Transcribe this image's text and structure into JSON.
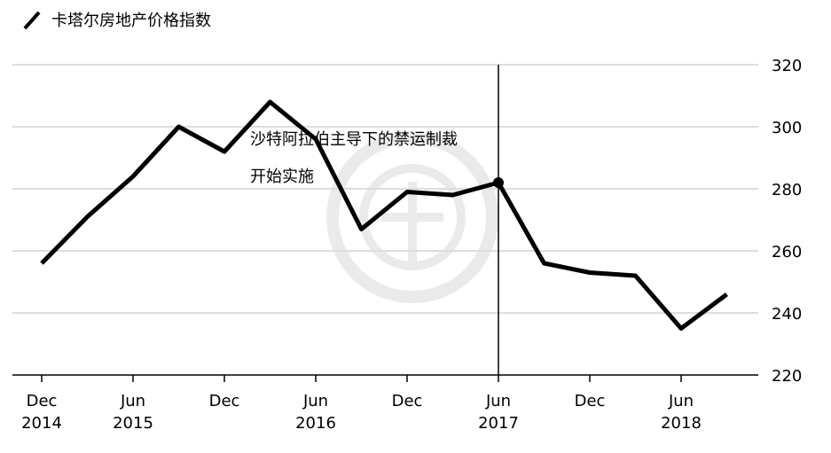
{
  "chart_data": {
    "type": "line",
    "legend_label": "卡塔尔房地产价格指数",
    "categories": [
      [
        "Dec",
        "2014"
      ],
      null,
      [
        "Jun",
        "2015"
      ],
      null,
      [
        "Dec"
      ],
      null,
      [
        "Jun",
        "2016"
      ],
      null,
      [
        "Dec"
      ],
      null,
      [
        "Jun",
        "2017"
      ],
      null,
      [
        "Dec"
      ],
      null,
      [
        "Jun",
        "2018"
      ],
      null
    ],
    "values": [
      256,
      271,
      284,
      300,
      292,
      308,
      296,
      267,
      279,
      278,
      282,
      256,
      253,
      252,
      235,
      246
    ],
    "color": "#000000",
    "ylim": [
      220,
      320
    ],
    "yticks": [
      220,
      240,
      260,
      280,
      300,
      320
    ],
    "grid": true,
    "annotation": {
      "index": 10,
      "lines": [
        "沙特阿拉伯主导下的禁运制裁",
        "开始实施"
      ]
    }
  }
}
